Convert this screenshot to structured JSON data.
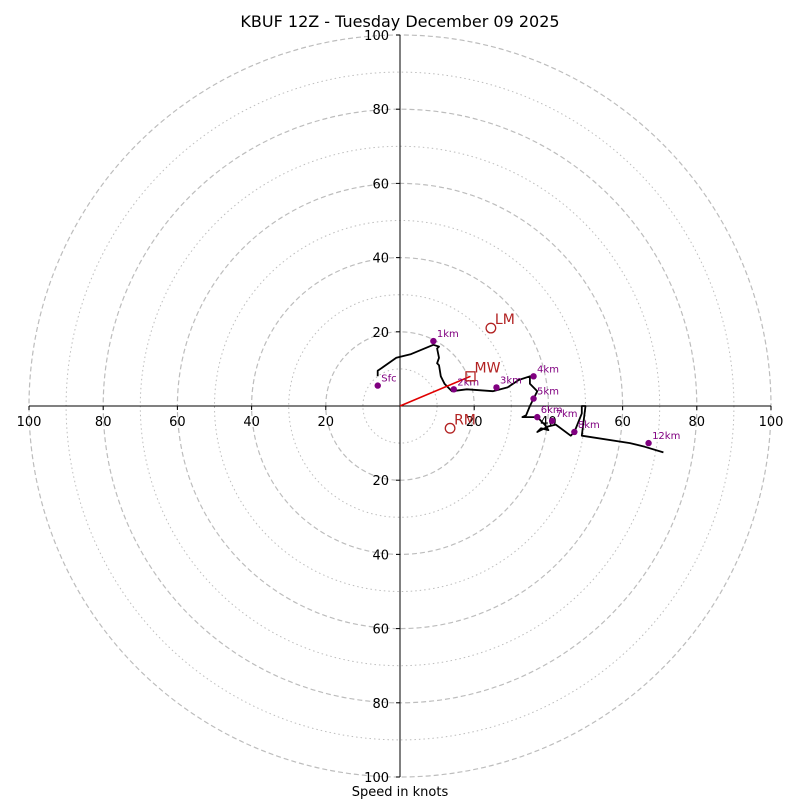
{
  "chart_data": {
    "type": "hodograph",
    "title": "KBUF 12Z - Tuesday December 09 2025",
    "xlabel": "Speed in knots",
    "range": [
      -100,
      100
    ],
    "ring_major": [
      20,
      40,
      60,
      80,
      100
    ],
    "ring_minor": [
      10,
      30,
      50,
      70,
      90
    ],
    "ticks": {
      "x_left": [
        "100",
        "80",
        "60",
        "40",
        "20"
      ],
      "x_right": [
        "20",
        "40",
        "60",
        "80",
        "100"
      ],
      "y_top": [
        "100",
        "80",
        "60",
        "40",
        "20"
      ],
      "y_bottom": [
        "20",
        "40",
        "60",
        "80",
        "100"
      ]
    },
    "trace": [
      [
        -6,
        8
      ],
      [
        -6,
        9.5
      ],
      [
        -1,
        13
      ],
      [
        3,
        14
      ],
      [
        9,
        16.5
      ],
      [
        10.5,
        16
      ],
      [
        10,
        15.5
      ],
      [
        10.5,
        13
      ],
      [
        10,
        11.5
      ],
      [
        10.5,
        11
      ],
      [
        11,
        8
      ],
      [
        12,
        6
      ],
      [
        14,
        4
      ],
      [
        18,
        4.5
      ],
      [
        25,
        4
      ],
      [
        29,
        5
      ],
      [
        32,
        7
      ],
      [
        35,
        8
      ],
      [
        35,
        6
      ],
      [
        37,
        4
      ],
      [
        36,
        2
      ],
      [
        35,
        0
      ],
      [
        34,
        -2.5
      ],
      [
        33,
        -3
      ],
      [
        37,
        -3
      ],
      [
        39,
        -5
      ],
      [
        40,
        -6.5
      ],
      [
        38,
        -6
      ],
      [
        37,
        -7
      ],
      [
        38,
        -6.5
      ],
      [
        40,
        -5.5
      ],
      [
        42,
        -5
      ],
      [
        46,
        -8
      ],
      [
        47,
        -7
      ],
      [
        49,
        -2
      ],
      [
        49,
        0
      ],
      [
        50,
        0
      ],
      [
        49,
        -8
      ],
      [
        62,
        -10
      ],
      [
        66,
        -11
      ],
      [
        71,
        -12.5
      ]
    ],
    "heights": [
      {
        "label": "Sfc",
        "u": -6,
        "v": 5.5
      },
      {
        "label": "1km",
        "u": 9,
        "v": 17.5
      },
      {
        "label": "2km",
        "u": 14.5,
        "v": 4.5
      },
      {
        "label": "3km",
        "u": 26,
        "v": 5
      },
      {
        "label": "4km",
        "u": 36,
        "v": 8
      },
      {
        "label": "5km",
        "u": 36,
        "v": 2
      },
      {
        "label": "6km",
        "u": 37,
        "v": -3
      },
      {
        "label": "7km",
        "u": 41,
        "v": -4
      },
      {
        "label": "8km",
        "u": 47,
        "v": -7
      },
      {
        "label": "12km",
        "u": 67,
        "v": -10
      }
    ],
    "markers": [
      {
        "label": "LM",
        "type": "circle",
        "u": 24.5,
        "v": 21
      },
      {
        "label": "MW",
        "type": "square",
        "u": 19,
        "v": 8
      },
      {
        "label": "RM",
        "type": "circle",
        "u": 13.5,
        "v": -6
      }
    ],
    "shear_vector": {
      "from": [
        0,
        0
      ],
      "to": [
        19,
        8
      ]
    }
  },
  "colors": {
    "ring": "#bdbdbd",
    "axis": "#000000",
    "trace": "#000000",
    "height_marker": "#800080",
    "storm_marker": "#b22222",
    "shear_vector": "#e00000"
  }
}
